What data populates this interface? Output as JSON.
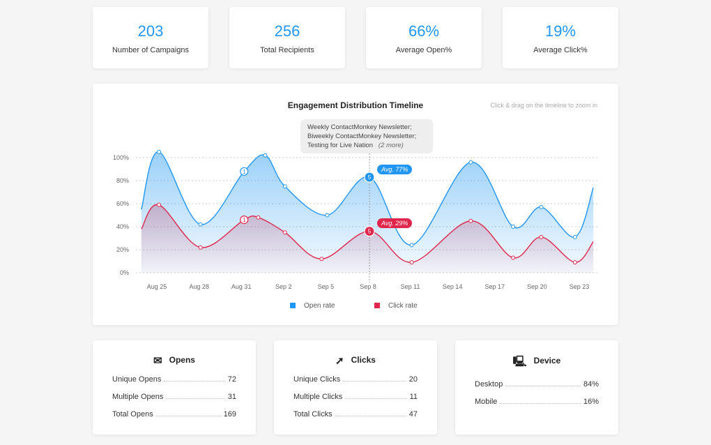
{
  "kpis": [
    {
      "value": "203",
      "label": "Number of Campaigns"
    },
    {
      "value": "256",
      "label": "Total Recipients"
    },
    {
      "value": "66%",
      "label": "Average Open%"
    },
    {
      "value": "19%",
      "label": "Average Click%"
    }
  ],
  "chart_data": {
    "type": "area",
    "title": "Engagement Distribution Timeline",
    "hint": "Click & drag on the timeline to zoom in",
    "x_unit": "days since Aug 25",
    "x_ticks": [
      {
        "day": 0,
        "label": "Aug 25"
      },
      {
        "day": 3,
        "label": "Aug 28"
      },
      {
        "day": 6,
        "label": "Aug 31"
      },
      {
        "day": 9,
        "label": "Sep 2"
      },
      {
        "day": 12,
        "label": "Sep 5"
      },
      {
        "day": 15,
        "label": "Sep 8"
      },
      {
        "day": 18,
        "label": "Sep 11"
      },
      {
        "day": 21,
        "label": "Sep 14"
      },
      {
        "day": 24,
        "label": "Sep 17"
      },
      {
        "day": 27,
        "label": "Sep 20"
      },
      {
        "day": 30,
        "label": "Sep 23"
      }
    ],
    "y_ticks": [
      "0%",
      "20%",
      "40%",
      "60%",
      "80%",
      "100%"
    ],
    "ylim": [
      0,
      100
    ],
    "grid": true,
    "legend_placement": "bottom",
    "series": [
      {
        "name": "Open rate",
        "color": "#2196f3",
        "points": [
          [
            -1.1,
            55
          ],
          [
            0.15,
            105
          ],
          [
            3.1,
            42
          ],
          [
            6.2,
            88
          ],
          [
            7.7,
            102
          ],
          [
            9.1,
            75
          ],
          [
            12.1,
            50
          ],
          [
            15.1,
            83
          ],
          [
            18.1,
            24
          ],
          [
            22.3,
            96
          ],
          [
            25.3,
            40
          ],
          [
            27.3,
            57
          ],
          [
            29.7,
            31
          ],
          [
            31,
            74
          ]
        ]
      },
      {
        "name": "Click rate",
        "color": "#e0264a",
        "points": [
          [
            -1.1,
            38
          ],
          [
            0.15,
            59
          ],
          [
            3.1,
            22
          ],
          [
            6.2,
            46
          ],
          [
            7.2,
            48
          ],
          [
            9.1,
            35
          ],
          [
            11.7,
            12
          ],
          [
            15.1,
            36
          ],
          [
            18.1,
            9
          ],
          [
            22.3,
            45
          ],
          [
            25.3,
            13
          ],
          [
            27.3,
            31
          ],
          [
            29.7,
            9
          ],
          [
            31,
            27
          ]
        ]
      }
    ],
    "markers": [
      {
        "series": 0,
        "day": 6.2,
        "value": 88,
        "label": "1"
      },
      {
        "series": 1,
        "day": 6.2,
        "value": 46,
        "label": "1"
      },
      {
        "series": 0,
        "day": 15.1,
        "value": 83,
        "label": "5"
      },
      {
        "series": 1,
        "day": 15.1,
        "value": 36,
        "label": "5"
      }
    ],
    "tooltip": {
      "lines": [
        "Weekly ContactMonkey Newsletter;",
        "Biweekly ContactMonkey Newsletter;",
        "Testing for Live Nation"
      ],
      "more": "(2 more)"
    },
    "avg_open": "Avg. 77%",
    "avg_click": "Avg. 29%"
  },
  "opens": {
    "title": "Opens",
    "rows": [
      {
        "label": "Unique Opens",
        "value": "72"
      },
      {
        "label": "Multiple Opens",
        "value": "31"
      },
      {
        "label": "Total Opens",
        "value": "169"
      }
    ]
  },
  "clicks": {
    "title": "Clicks",
    "rows": [
      {
        "label": "Unique Clicks",
        "value": "20"
      },
      {
        "label": "Multiple Clicks",
        "value": "11"
      },
      {
        "label": "Total Clicks",
        "value": "47"
      }
    ]
  },
  "device": {
    "title": "Device",
    "rows": [
      {
        "label": "Desktop",
        "value": "84%"
      },
      {
        "label": "Mobile",
        "value": "16%"
      }
    ]
  }
}
